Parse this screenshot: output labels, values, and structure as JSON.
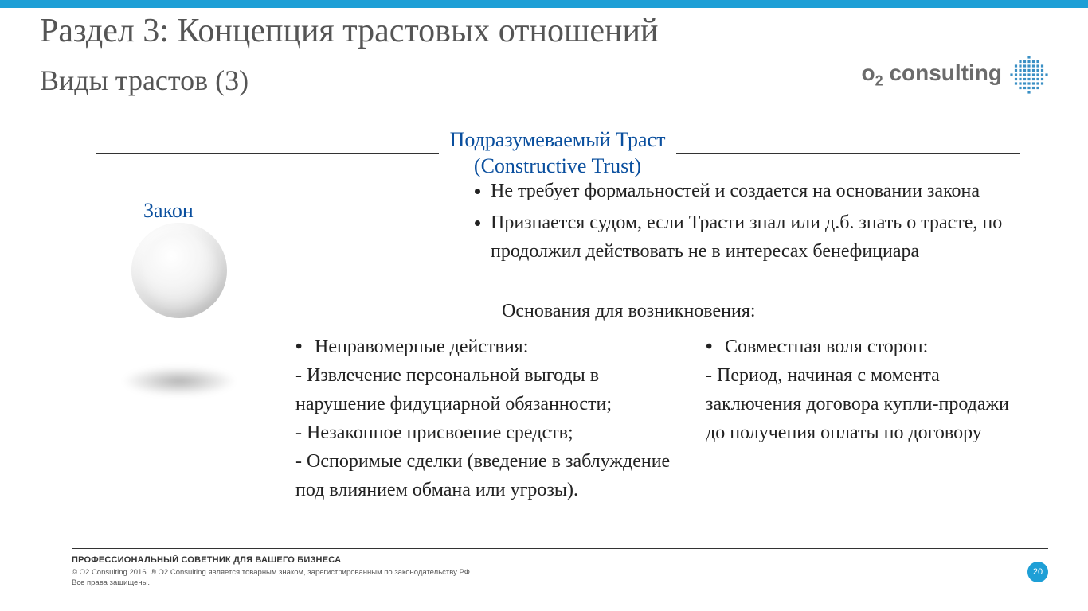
{
  "colors": {
    "top_bar": "#1e9fd6",
    "heading": "#555555",
    "accent_blue": "#0a4f9e",
    "text": "#222222",
    "logo_text": "#6b6b6b",
    "globe": "#3a8fc4",
    "page_badge_bg": "#1e9fd6"
  },
  "header": {
    "title": "Раздел 3: Концепция трастовых отношений",
    "subtitle": "Виды трастов (3)"
  },
  "logo": {
    "text_prefix": "o",
    "text_sub": "2",
    "text_suffix": "consulting"
  },
  "center": {
    "title_line1": "Подразумеваемый Траст",
    "title_line2": "(Constructive Trust)"
  },
  "left_diagram": {
    "label": "Закон"
  },
  "upper_bullets": [
    "Не требует формальностей и создается на основании закона",
    "Признается судом, если Трасти знал или д.б. знать о трасте, но продолжил действовать не в интересах бенефициара"
  ],
  "grounds": {
    "title": "Основания для возникновения:",
    "left": {
      "lead": "Неправомерные действия:",
      "items": [
        "- Извлечение персональной выгоды в нарушение фидуциарной обязанности;",
        "- Незаконное присвоение средств;",
        "- Оспоримые сделки (введение в заблуждение под влиянием обмана или угрозы)."
      ]
    },
    "right": {
      "lead": "Совместная воля сторон:",
      "items": [
        "- Период, начиная с момента заключения договора купли-продажи до получения оплаты по договору"
      ]
    }
  },
  "footer": {
    "tagline": "ПРОФЕССИОНАЛЬНЫЙ СОВЕТНИК ДЛЯ ВАШЕГО БИЗНЕСА",
    "copyright": "© O2 Consulting 2016. ® O2 Consulting является товарным знаком, зарегистрированным по законодательству РФ. Все права защищены."
  },
  "page_number": "20"
}
